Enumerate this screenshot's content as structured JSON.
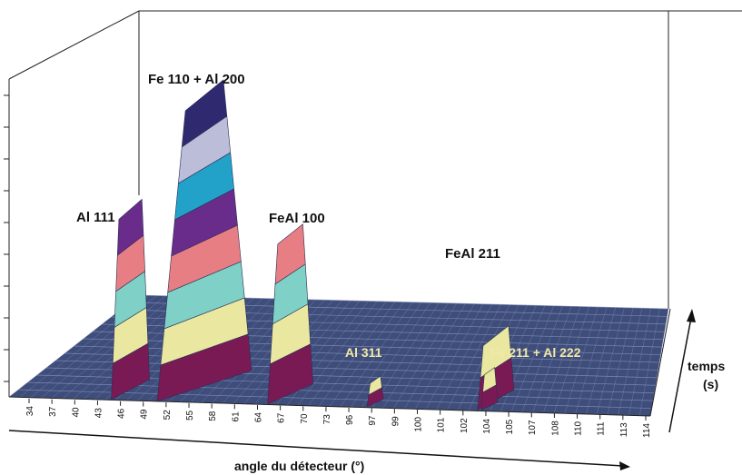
{
  "chart_data": {
    "type": "area",
    "xlabel": "angle du détecteur (°)",
    "zlabel_line1": "temps",
    "zlabel_line2": "(s)",
    "x_ticks": [
      "34",
      "37",
      "40",
      "43",
      "46",
      "49",
      "52",
      "55",
      "58",
      "61",
      "64",
      "67",
      "70",
      "73",
      "96",
      "97",
      "99",
      "100",
      "101",
      "102",
      "104",
      "105",
      "107",
      "108",
      "110",
      "111",
      "113",
      "114"
    ],
    "peaks": [
      {
        "label": "Al 111",
        "x": 46,
        "relative_height": 0.62
      },
      {
        "label": "Fe 110 + Al 200",
        "x": 55,
        "relative_height": 1.0
      },
      {
        "label": "FeAl 100",
        "x": 67,
        "relative_height": 0.55
      },
      {
        "label": "FeAl 211",
        "x": 104,
        "relative_height": 0.22
      },
      {
        "label": "Al 311",
        "x": 97,
        "relative_height": 0.08
      },
      {
        "label": "Fe 211 + Al 222",
        "x": 104,
        "relative_height": 0.12
      }
    ],
    "colors": {
      "surface": "#3e4d7a",
      "mesh": "#8a96c4",
      "floor": "#8a9496",
      "bands": [
        "#7a1a55",
        "#e9e7a0",
        "#7fd0c6",
        "#e77e84",
        "#6a2c8a",
        "#22a2c8",
        "#bcbdd8",
        "#2f2a70"
      ]
    }
  }
}
